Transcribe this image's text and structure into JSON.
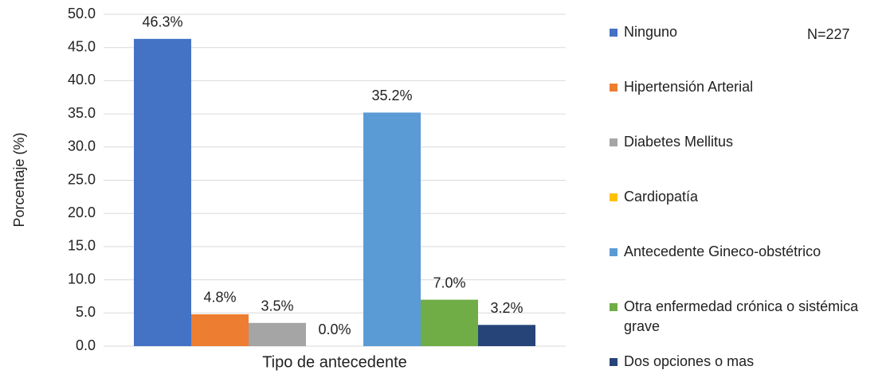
{
  "chart_data": {
    "type": "bar",
    "categories": [
      "Tipo de antecedente"
    ],
    "ylabel": "Porcentaje (%)",
    "annotation": "N=227",
    "series": [
      {
        "name": "Ninguno",
        "color": "#4472c4",
        "values": [
          46.3
        ],
        "value_labels": [
          "46.3%"
        ]
      },
      {
        "name": "Hipertensión Arterial",
        "color": "#ed7d31",
        "values": [
          4.8
        ],
        "value_labels": [
          "4.8%"
        ]
      },
      {
        "name": "Diabetes Mellitus",
        "color": "#a5a5a5",
        "values": [
          3.5
        ],
        "value_labels": [
          "3.5%"
        ]
      },
      {
        "name": "Cardiopatía",
        "color": "#ffc000",
        "values": [
          0.0
        ],
        "value_labels": [
          "0.0%"
        ]
      },
      {
        "name": "Antecedente Gineco-obstétrico",
        "color": "#5b9bd5",
        "values": [
          35.2
        ],
        "value_labels": [
          "35.2%"
        ]
      },
      {
        "name": "Otra enfermedad crónica o sistémica grave",
        "color": "#70ad47",
        "values": [
          7.0
        ],
        "value_labels": [
          "7.0%"
        ]
      },
      {
        "name": "Dos opciones o mas",
        "color": "#264478",
        "values": [
          3.2
        ],
        "value_labels": [
          "3.2%"
        ]
      }
    ],
    "ylim": [
      0,
      50
    ],
    "yticks": [
      {
        "value": 0,
        "label": "0.0"
      },
      {
        "value": 5,
        "label": "5.0"
      },
      {
        "value": 10,
        "label": "10.0"
      },
      {
        "value": 15,
        "label": "15.0"
      },
      {
        "value": 20,
        "label": "20.0"
      },
      {
        "value": 25,
        "label": "25.0"
      },
      {
        "value": 30,
        "label": "30.0"
      },
      {
        "value": 35,
        "label": "35.0"
      },
      {
        "value": 40,
        "label": "40.0"
      },
      {
        "value": 45,
        "label": "45.0"
      },
      {
        "value": 50,
        "label": "50.0"
      }
    ],
    "grid": true,
    "legend": "right"
  }
}
